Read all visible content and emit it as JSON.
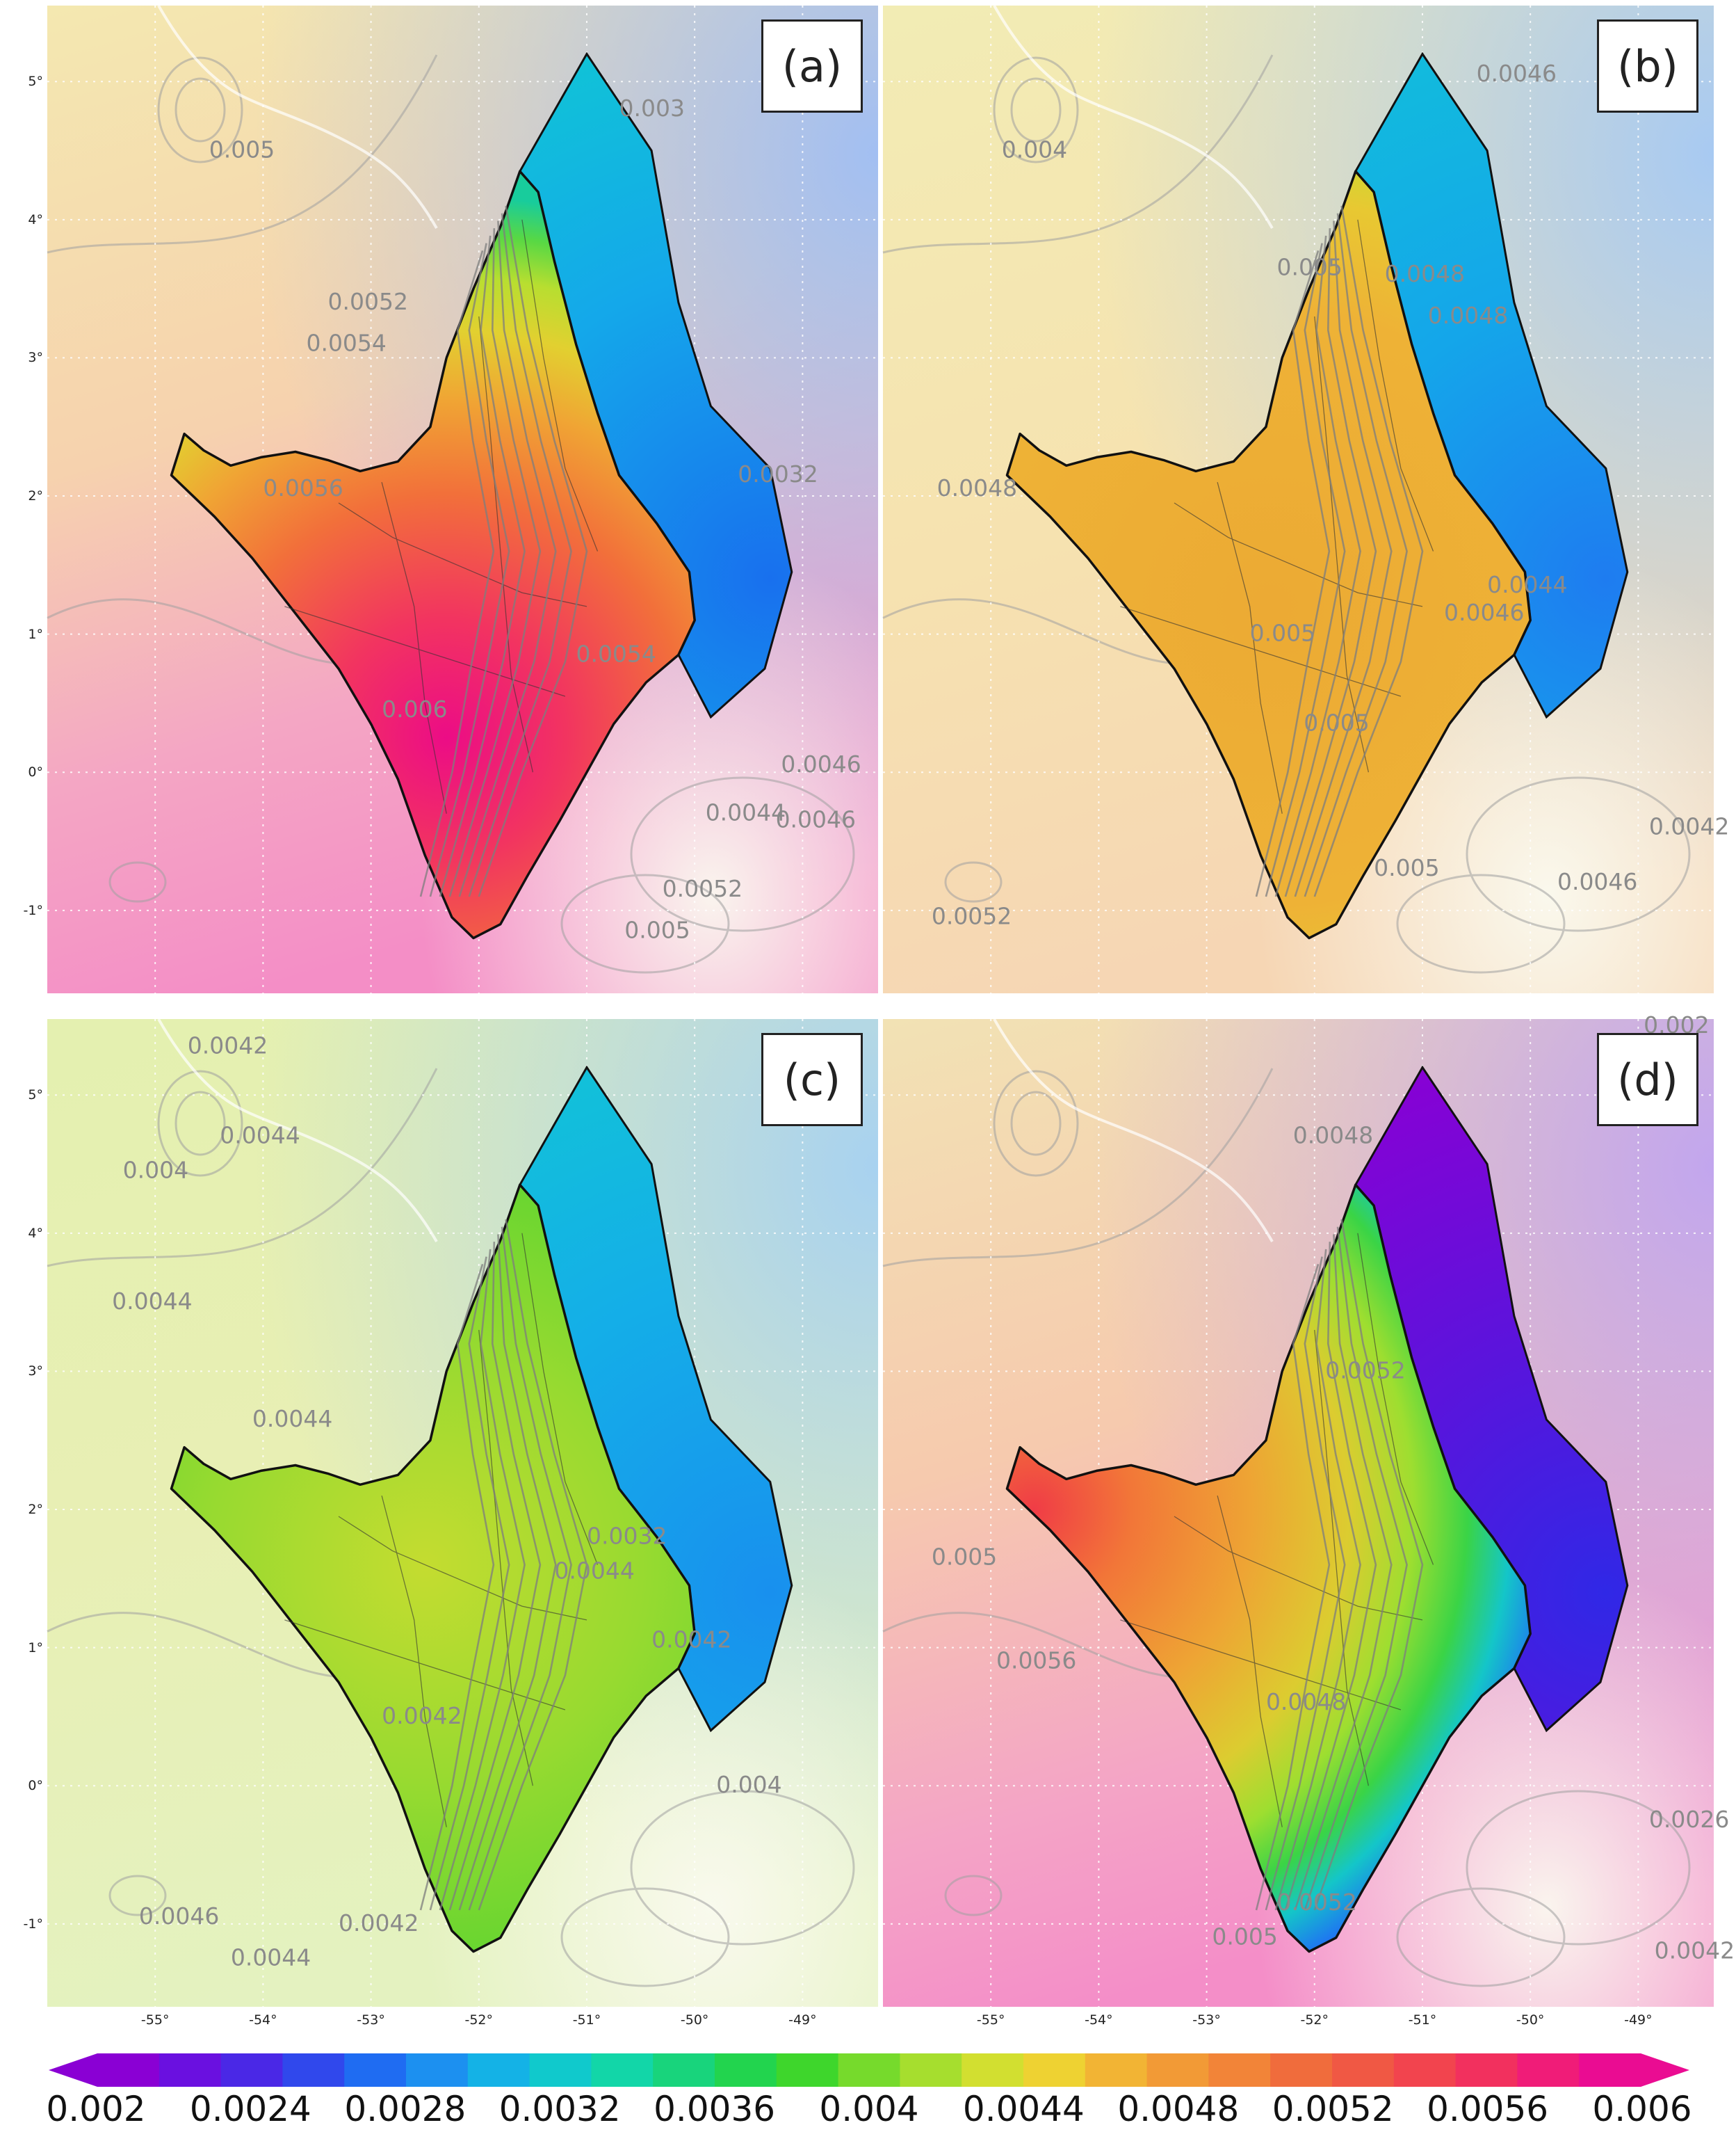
{
  "panels": [
    {
      "label": "(a)",
      "scheme": "a",
      "contour_labels": [
        "0.005",
        "0.0052",
        "0.0054",
        "0.0056",
        "0.006",
        "0.0054",
        "0.0032",
        "0.003",
        "0.0044",
        "0.0046",
        "0.0052",
        "0.005",
        "0.0046"
      ]
    },
    {
      "label": "(b)",
      "scheme": "b",
      "contour_labels": [
        "0.0046",
        "0.004",
        "0.005",
        "0.0048",
        "0.0048",
        "0.0048",
        "0.0044",
        "0.0046",
        "0.005",
        "0.005",
        "0.005",
        "0.0052",
        "0.0046",
        "0.0042"
      ]
    },
    {
      "label": "(c)",
      "scheme": "c",
      "contour_labels": [
        "0.0042",
        "0.0044",
        "0.004",
        "0.0044",
        "0.0044",
        "0.0032",
        "0.0044",
        "0.0042",
        "0.0042",
        "0.0046",
        "0.0044",
        "0.0042",
        "0.004"
      ]
    },
    {
      "label": "(d)",
      "scheme": "d",
      "contour_labels": [
        "0.002",
        "0.0048",
        "0.0052",
        "0.005",
        "0.0048",
        "0.0056",
        "0.0052",
        "0.005",
        "0.0026",
        "0.0042"
      ]
    }
  ],
  "lon_ticks": [
    "-55°",
    "-54°",
    "-53°",
    "-52°",
    "-51°",
    "-50°",
    "-49°"
  ],
  "lat_ticks": [
    "5°",
    "4°",
    "3°",
    "2°",
    "1°",
    "0°",
    "-1°"
  ],
  "colorbar": {
    "min": 0.002,
    "max": 0.006,
    "step": 0.0002,
    "labels": [
      "0.002",
      "0.0024",
      "0.0028",
      "0.0032",
      "0.0036",
      "0.004",
      "0.0044",
      "0.0048",
      "0.0052",
      "0.0056",
      "0.006"
    ],
    "colors": [
      "#8a00d4",
      "#6a10e0",
      "#4a28e6",
      "#3048ec",
      "#1f6cf2",
      "#1c90f0",
      "#14b2e6",
      "#10c9cc",
      "#12d6a8",
      "#18d47c",
      "#22d44e",
      "#3ed62c",
      "#76da2c",
      "#a6de2e",
      "#d2df30",
      "#eed232",
      "#f2b434",
      "#f29a36",
      "#f28438",
      "#f06c3c",
      "#f05844",
      "#f2444e",
      "#f2305e",
      "#f01c78",
      "#ea0c92"
    ]
  },
  "colors": {
    "ocean": "#9cc8f0",
    "land_pale": "#f2e8a8",
    "coast": "#111111",
    "contour": "#8a8a8a"
  }
}
